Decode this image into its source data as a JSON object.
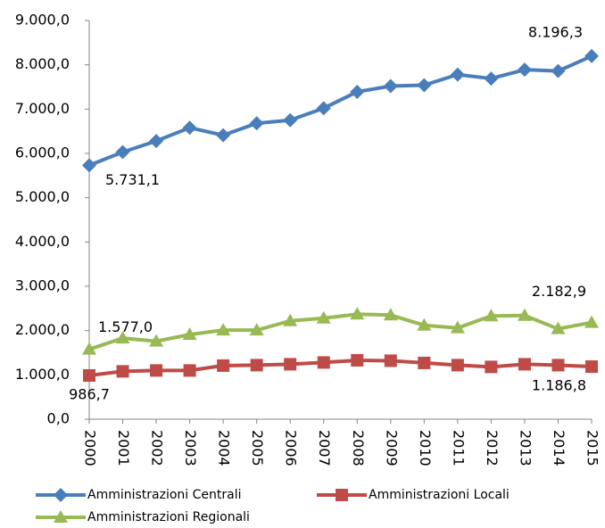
{
  "chart_data": {
    "type": "line",
    "categories": [
      "2000",
      "2001",
      "2002",
      "2003",
      "2004",
      "2005",
      "2006",
      "2007",
      "2008",
      "2009",
      "2010",
      "2011",
      "2012",
      "2013",
      "2014",
      "2015"
    ],
    "series": [
      {
        "name": "Amministrazioni Centrali",
        "color": "#4a7ebb",
        "values": [
          5731.1,
          6030,
          6280,
          6580,
          6410,
          6680,
          6750,
          7020,
          7390,
          7520,
          7540,
          7780,
          7690,
          7890,
          7860,
          8196.3
        ],
        "value_labels": [
          "5.731,1",
          null,
          null,
          null,
          null,
          null,
          null,
          null,
          null,
          null,
          null,
          null,
          null,
          null,
          null,
          "8.196,3"
        ]
      },
      {
        "name": "Amministrazioni Locali",
        "color": "#be4b48",
        "values": [
          986.7,
          1080,
          1100,
          1100,
          1210,
          1220,
          1240,
          1280,
          1330,
          1320,
          1270,
          1220,
          1180,
          1240,
          1220,
          1186.8
        ],
        "value_labels": [
          "986,7",
          null,
          null,
          null,
          null,
          null,
          null,
          null,
          null,
          null,
          null,
          null,
          null,
          null,
          null,
          "1.186,8"
        ]
      },
      {
        "name": "Amministrazioni Regionali",
        "color": "#98b954",
        "values": [
          1577.0,
          1830,
          1760,
          1910,
          2010,
          2010,
          2220,
          2280,
          2370,
          2350,
          2120,
          2060,
          2330,
          2340,
          2040,
          2182.9
        ],
        "value_labels": [
          "1.577,0",
          null,
          null,
          null,
          null,
          null,
          null,
          null,
          null,
          null,
          null,
          null,
          null,
          null,
          null,
          "2.182,9"
        ]
      }
    ],
    "ylim": [
      0,
      9000
    ],
    "yticks": [
      {
        "value": 0,
        "label": "0,0"
      },
      {
        "value": 1000,
        "label": "1.000,0"
      },
      {
        "value": 2000,
        "label": "2.000,0"
      },
      {
        "value": 3000,
        "label": "3.000,0"
      },
      {
        "value": 4000,
        "label": "4.000,0"
      },
      {
        "value": 5000,
        "label": "5.000,0"
      },
      {
        "value": 6000,
        "label": "6.000,0"
      },
      {
        "value": 7000,
        "label": "7.000,0"
      },
      {
        "value": 8000,
        "label": "8.000,0"
      },
      {
        "value": 9000,
        "label": "9.000,0"
      }
    ],
    "grid": false
  }
}
